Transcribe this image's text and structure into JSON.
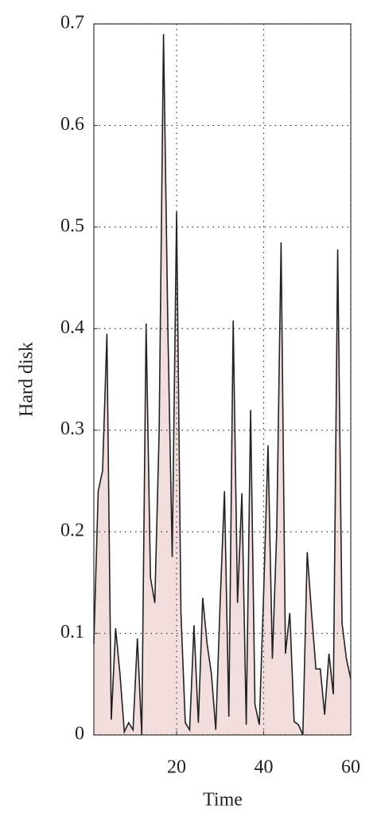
{
  "chart_data": {
    "type": "area",
    "x_label": "Time",
    "y_label": "Hard disk",
    "x": [
      1,
      2,
      3,
      4,
      5,
      6,
      7,
      8,
      9,
      10,
      11,
      12,
      13,
      14,
      15,
      16,
      17,
      18,
      19,
      20,
      21,
      22,
      23,
      24,
      25,
      26,
      27,
      28,
      29,
      30,
      31,
      32,
      33,
      34,
      35,
      36,
      37,
      38,
      39,
      40,
      41,
      42,
      43,
      44,
      45,
      46,
      47,
      48,
      49,
      50,
      51,
      52,
      53,
      54,
      55,
      56,
      57,
      58,
      59,
      60
    ],
    "values": [
      0.09,
      0.24,
      0.26,
      0.395,
      0.015,
      0.105,
      0.06,
      0.003,
      0.012,
      0.005,
      0.095,
      0.0,
      0.405,
      0.155,
      0.13,
      0.3,
      0.69,
      0.4,
      0.175,
      0.515,
      0.12,
      0.012,
      0.005,
      0.108,
      0.012,
      0.135,
      0.09,
      0.06,
      0.005,
      0.13,
      0.24,
      0.018,
      0.408,
      0.13,
      0.238,
      0.01,
      0.32,
      0.03,
      0.01,
      0.14,
      0.285,
      0.075,
      0.2,
      0.485,
      0.08,
      0.12,
      0.013,
      0.01,
      0.0,
      0.18,
      0.12,
      0.065,
      0.065,
      0.02,
      0.08,
      0.04,
      0.478,
      0.11,
      0.075,
      0.055
    ],
    "line_color": "#222222",
    "fill_color": "#f2dfdd",
    "xlim": [
      1,
      60
    ],
    "xticks": [
      20,
      40,
      60
    ],
    "ylim": [
      0,
      0.7
    ],
    "yticks": [
      0,
      0.1,
      0.2,
      0.3,
      0.4,
      0.5,
      0.6,
      0.7
    ],
    "grid": true
  }
}
